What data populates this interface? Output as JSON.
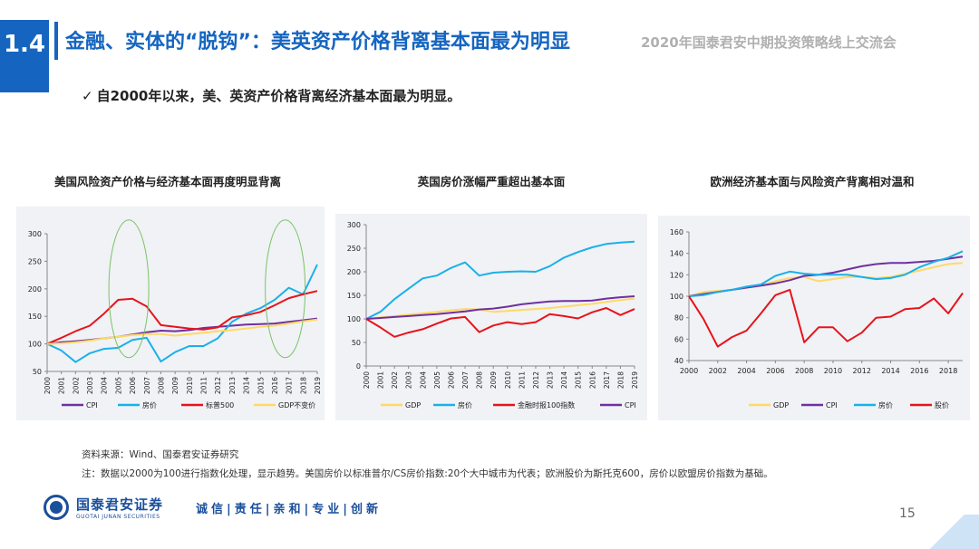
{
  "header": {
    "section_number": "1.4",
    "title": "金融、实体的“脱钩”：美英资产价格背离基本面最为明显",
    "subtitle": "2020年国泰君安中期投资策略线上交流会"
  },
  "bullet": {
    "check": "✓",
    "text": "自2000年以来，美、英资产价格背离经济基本面最为明显。"
  },
  "colors": {
    "brand": "#1565c0",
    "cpi": "#7030a0",
    "house": "#1ab0ea",
    "stock": "#e8131b",
    "gdp": "#ffd966"
  },
  "chart_data": [
    {
      "type": "line",
      "title": "美国风险资产价格与经济基本面再度明显背离",
      "x": [
        2000,
        2001,
        2002,
        2003,
        2004,
        2005,
        2006,
        2007,
        2008,
        2009,
        2010,
        2011,
        2012,
        2013,
        2014,
        2015,
        2016,
        2017,
        2018,
        2019
      ],
      "ylim": [
        50,
        300
      ],
      "yticks": [
        50,
        100,
        150,
        200,
        250,
        300
      ],
      "grid": false,
      "legend_position": "bottom",
      "annotations": "two green ellipses around 2006 and 2017",
      "series": [
        {
          "name": "CPI",
          "color": "#7030a0",
          "values": [
            100,
            103,
            105,
            107,
            110,
            113,
            117,
            121,
            124,
            123,
            125,
            129,
            131,
            133,
            135,
            136,
            137,
            140,
            143,
            146
          ]
        },
        {
          "name": "房价",
          "color": "#1ab0ea",
          "values": [
            100,
            88,
            67,
            83,
            91,
            93,
            107,
            111,
            68,
            85,
            96,
            96,
            110,
            140,
            155,
            165,
            180,
            202,
            190,
            244
          ]
        },
        {
          "name": "标普500",
          "color": "#e8131b",
          "values": [
            100,
            111,
            123,
            133,
            155,
            180,
            182,
            168,
            134,
            131,
            128,
            126,
            130,
            148,
            152,
            158,
            170,
            183,
            190,
            196
          ]
        },
        {
          "name": "GDP不变价",
          "color": "#ffd966",
          "values": [
            100,
            101,
            103,
            106,
            110,
            113,
            116,
            118,
            118,
            115,
            118,
            120,
            123,
            125,
            128,
            131,
            133,
            137,
            141,
            144
          ]
        }
      ]
    },
    {
      "type": "line",
      "title": "英国房价涨幅严重超出基本面",
      "x": [
        2000,
        2001,
        2002,
        2003,
        2004,
        2005,
        2006,
        2007,
        2008,
        2009,
        2010,
        2011,
        2012,
        2013,
        2014,
        2015,
        2016,
        2017,
        2018,
        2019
      ],
      "ylim": [
        0,
        300
      ],
      "yticks": [
        0,
        50,
        100,
        150,
        200,
        250,
        300
      ],
      "grid": false,
      "legend_position": "bottom",
      "series": [
        {
          "name": "GDP",
          "color": "#ffd966",
          "values": [
            100,
            103,
            106,
            109,
            112,
            115,
            118,
            121,
            120,
            115,
            117,
            119,
            121,
            123,
            126,
            129,
            132,
            136,
            140,
            143
          ]
        },
        {
          "name": "房价",
          "color": "#1ab0ea",
          "values": [
            100,
            115,
            142,
            164,
            186,
            192,
            208,
            220,
            192,
            198,
            200,
            201,
            200,
            212,
            230,
            242,
            252,
            259,
            262,
            264
          ]
        },
        {
          "name": "金融时报100指数",
          "color": "#e8131b",
          "values": [
            100,
            82,
            62,
            71,
            78,
            90,
            101,
            104,
            72,
            86,
            93,
            89,
            93,
            110,
            106,
            101,
            114,
            123,
            108,
            121
          ]
        },
        {
          "name": "CPI",
          "color": "#7030a0",
          "values": [
            100,
            102,
            104,
            106,
            108,
            110,
            113,
            116,
            120,
            122,
            126,
            131,
            134,
            137,
            138,
            138,
            139,
            143,
            146,
            148
          ]
        }
      ]
    },
    {
      "type": "line",
      "title": "欧洲经济基本面与风险资产背离相对温和",
      "x": [
        2000,
        2001,
        2002,
        2003,
        2004,
        2005,
        2006,
        2007,
        2008,
        2009,
        2010,
        2011,
        2012,
        2013,
        2014,
        2015,
        2016,
        2017,
        2018,
        2019
      ],
      "xtick_labels": [
        2000,
        2002,
        2004,
        2006,
        2008,
        2010,
        2012,
        2014,
        2016,
        2018
      ],
      "ylim": [
        40,
        160
      ],
      "yticks": [
        40,
        60,
        80,
        100,
        120,
        140,
        160
      ],
      "grid": false,
      "legend_position": "bottom",
      "series": [
        {
          "name": "GDP",
          "color": "#ffd966",
          "values": [
            100,
            104,
            105,
            106,
            108,
            110,
            114,
            117,
            118,
            114,
            116,
            118,
            118,
            117,
            118,
            121,
            124,
            127,
            130,
            131
          ]
        },
        {
          "name": "CPI",
          "color": "#7030a0",
          "values": [
            100,
            102,
            104,
            106,
            108,
            110,
            112,
            115,
            119,
            120,
            122,
            125,
            128,
            130,
            131,
            131,
            132,
            133,
            135,
            137
          ]
        },
        {
          "name": "房价",
          "color": "#1ab0ea",
          "values": [
            100,
            101,
            104,
            106,
            109,
            111,
            119,
            123,
            121,
            120,
            120,
            120,
            118,
            116,
            117,
            120,
            127,
            132,
            136,
            142
          ]
        },
        {
          "name": "股价",
          "color": "#e8131b",
          "values": [
            100,
            79,
            53,
            62,
            68,
            84,
            101,
            106,
            57,
            71,
            71,
            58,
            66,
            80,
            81,
            88,
            89,
            98,
            84,
            103
          ]
        }
      ]
    }
  ],
  "footer": {
    "source": "资料来源：Wind、国泰君安证券研究",
    "note": "注：数据以2000为100进行指数化处理，显示趋势。美国房价以标准普尔/CS房价指数:20个大中城市为代表；欧洲股价为斯托克600，房价以欧盟房价指数为基础。",
    "logo_cn": "国泰君安证券",
    "logo_en": "GUOTAI JUNAN SECURITIES",
    "slogan": "诚信|责任|亲和|专业|创新",
    "page_number": "15"
  }
}
